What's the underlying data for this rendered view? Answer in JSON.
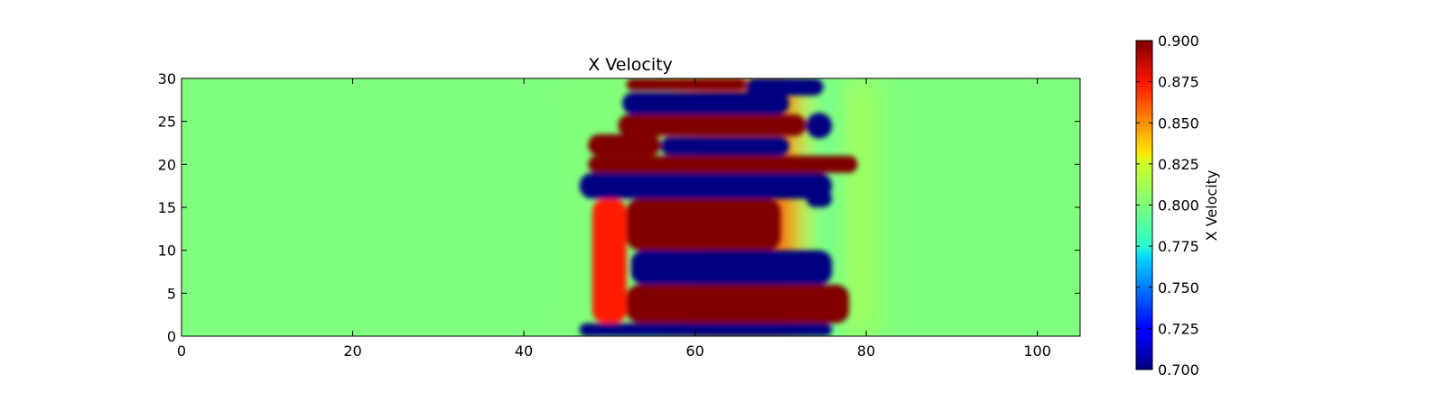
{
  "chart_data": {
    "type": "heatmap",
    "title": "X Velocity",
    "xlabel": "",
    "ylabel": "",
    "xlim": [
      0,
      105
    ],
    "ylim": [
      0,
      30
    ],
    "xticks": [
      0,
      20,
      40,
      60,
      80,
      100
    ],
    "yticks": [
      0,
      5,
      10,
      15,
      20,
      25,
      30
    ],
    "colormap": "jet",
    "grid": false,
    "colorbar": {
      "label": "X Velocity",
      "range": [
        0.7,
        0.9
      ],
      "ticks": [
        "0.700",
        "0.725",
        "0.750",
        "0.775",
        "0.800",
        "0.825",
        "0.850",
        "0.875",
        "0.900"
      ]
    },
    "background_value": 0.79,
    "regions": [
      {
        "value": 0.9,
        "x": [
          52,
          66
        ],
        "y": [
          28.6,
          30
        ]
      },
      {
        "value": 0.7,
        "x": [
          51.5,
          71
        ],
        "y": [
          25.8,
          28.4
        ]
      },
      {
        "value": 0.9,
        "x": [
          51,
          73
        ],
        "y": [
          23.3,
          25.8
        ]
      },
      {
        "value": 0.7,
        "x": [
          56,
          71
        ],
        "y": [
          21,
          23.2
        ]
      },
      {
        "value": 0.9,
        "x": [
          47.5,
          79
        ],
        "y": [
          19,
          21
        ]
      },
      {
        "value": 0.9,
        "x": [
          47.5,
          56
        ],
        "y": [
          21,
          23.5
        ]
      },
      {
        "value": 0.7,
        "x": [
          46.5,
          76
        ],
        "y": [
          16,
          19
        ]
      },
      {
        "value": 0.9,
        "x": [
          52,
          70
        ],
        "y": [
          10,
          16
        ]
      },
      {
        "value": 0.7,
        "x": [
          52.5,
          76
        ],
        "y": [
          6,
          10
        ]
      },
      {
        "value": 0.9,
        "x": [
          52,
          78
        ],
        "y": [
          1.5,
          6
        ]
      },
      {
        "value": 0.7,
        "x": [
          46.5,
          76
        ],
        "y": [
          0,
          1.5
        ]
      },
      {
        "value": 0.87,
        "x": [
          48,
          52
        ],
        "y": [
          1.5,
          16
        ]
      },
      {
        "value": 0.7,
        "x": [
          66,
          75
        ],
        "y": [
          28,
          30
        ]
      },
      {
        "value": 0.7,
        "x": [
          73,
          76
        ],
        "y": [
          23,
          26
        ]
      },
      {
        "value": 0.7,
        "x": [
          73,
          76
        ],
        "y": [
          15,
          17
        ]
      }
    ]
  }
}
